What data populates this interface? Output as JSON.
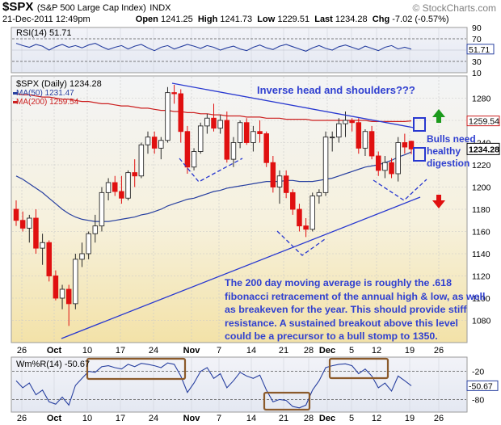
{
  "header": {
    "symbol": "$SPX",
    "name": "(S&P 500 Large Cap Index)",
    "exchange": "INDX",
    "source": "© StockCharts.com",
    "datetime": "21-Dec-2011 12:49pm",
    "open_label": "Open",
    "open": "1241.25",
    "high_label": "High",
    "high": "1241.73",
    "low_label": "Low",
    "low": "1229.51",
    "last_label": "Last",
    "last": "1234.28",
    "chg_label": "Chg",
    "chg": "-7.02 (-0.57%)"
  },
  "colors": {
    "up": "#2a2a2a",
    "down": "#e01010",
    "ma50": "#2840a0",
    "ma200": "#cc2020",
    "trendline": "#2838d0",
    "annotation": "#3040d0",
    "panel_bg": "#fbf7e6",
    "grid": "#c8c8c8"
  },
  "chart_data": [
    {
      "type": "line",
      "panel": "RSI",
      "label": "RSI(14) 51.71",
      "last_label": "51.71",
      "ylim": [
        10,
        90
      ],
      "y_ticks": [
        "10",
        "30",
        "50",
        "70",
        "90"
      ],
      "dashed_levels": [
        30,
        70
      ],
      "values": [
        62,
        58,
        55,
        60,
        57,
        50,
        56,
        60,
        55,
        58,
        54,
        59,
        62,
        56,
        51,
        55,
        58,
        52,
        57,
        60,
        54,
        49,
        55,
        58,
        52,
        56,
        60,
        57,
        53,
        58,
        55,
        50,
        54,
        57,
        52,
        49,
        55,
        59,
        54,
        51,
        57,
        60,
        56,
        52,
        48,
        54,
        58,
        53,
        50,
        56,
        59,
        55,
        51,
        57,
        53,
        49,
        55,
        58,
        52,
        55,
        51.71
      ]
    },
    {
      "type": "candlestick",
      "panel": "price",
      "label": "$SPX (Daily) 1234.28",
      "legend": [
        "MA(50) 1231.47",
        "MA(200) 1259.54"
      ],
      "last_label": "1234.28",
      "ma200_label": "1259.54",
      "ylim": [
        1060,
        1300
      ],
      "y_ticks": [
        "1080",
        "1100",
        "1120",
        "1140",
        "1160",
        "1180",
        "1200",
        "1220",
        "1240",
        "1260",
        "1280"
      ],
      "x_ticks": [
        "26",
        "Oct",
        "10",
        "17",
        "24",
        "Nov",
        "7",
        "14",
        "21",
        "28",
        "Dec",
        "5",
        "12",
        "19",
        "26"
      ],
      "ohlc": [
        [
          1180,
          1188,
          1165,
          1170
        ],
        [
          1170,
          1178,
          1160,
          1163
        ],
        [
          1163,
          1175,
          1150,
          1172
        ],
        [
          1172,
          1180,
          1140,
          1145
        ],
        [
          1145,
          1158,
          1130,
          1150
        ],
        [
          1150,
          1152,
          1115,
          1120
        ],
        [
          1120,
          1125,
          1098,
          1100
        ],
        [
          1100,
          1112,
          1090,
          1108
        ],
        [
          1108,
          1112,
          1075,
          1095
        ],
        [
          1095,
          1140,
          1090,
          1135
        ],
        [
          1135,
          1150,
          1128,
          1140
        ],
        [
          1140,
          1160,
          1135,
          1158
        ],
        [
          1158,
          1175,
          1150,
          1165
        ],
        [
          1165,
          1200,
          1160,
          1195
        ],
        [
          1195,
          1208,
          1188,
          1204
        ],
        [
          1204,
          1210,
          1192,
          1196
        ],
        [
          1196,
          1210,
          1185,
          1190
        ],
        [
          1190,
          1215,
          1188,
          1213
        ],
        [
          1213,
          1225,
          1200,
          1210
        ],
        [
          1210,
          1240,
          1208,
          1238
        ],
        [
          1238,
          1250,
          1230,
          1245
        ],
        [
          1245,
          1250,
          1230,
          1235
        ],
        [
          1235,
          1245,
          1225,
          1242
        ],
        [
          1242,
          1290,
          1240,
          1285
        ],
        [
          1285,
          1292,
          1275,
          1284
        ],
        [
          1284,
          1288,
          1240,
          1250
        ],
        [
          1250,
          1255,
          1212,
          1218
        ],
        [
          1218,
          1235,
          1215,
          1232
        ],
        [
          1232,
          1258,
          1230,
          1255
        ],
        [
          1255,
          1266,
          1248,
          1262
        ],
        [
          1262,
          1275,
          1250,
          1253
        ],
        [
          1253,
          1265,
          1248,
          1260
        ],
        [
          1260,
          1268,
          1222,
          1225
        ],
        [
          1225,
          1245,
          1218,
          1240
        ],
        [
          1240,
          1260,
          1235,
          1258
        ],
        [
          1258,
          1262,
          1238,
          1240
        ],
        [
          1240,
          1255,
          1232,
          1250
        ],
        [
          1250,
          1260,
          1240,
          1248
        ],
        [
          1248,
          1250,
          1218,
          1222
        ],
        [
          1222,
          1228,
          1195,
          1200
        ],
        [
          1200,
          1215,
          1185,
          1210
        ],
        [
          1210,
          1215,
          1190,
          1195
        ],
        [
          1195,
          1198,
          1175,
          1180
        ],
        [
          1180,
          1185,
          1160,
          1165
        ],
        [
          1165,
          1172,
          1155,
          1162
        ],
        [
          1162,
          1195,
          1160,
          1192
        ],
        [
          1192,
          1198,
          1185,
          1195
        ],
        [
          1195,
          1250,
          1192,
          1245
        ],
        [
          1245,
          1250,
          1232,
          1245
        ],
        [
          1245,
          1262,
          1240,
          1257
        ],
        [
          1257,
          1268,
          1245,
          1260
        ],
        [
          1260,
          1262,
          1250,
          1258
        ],
        [
          1258,
          1262,
          1230,
          1235
        ],
        [
          1235,
          1252,
          1228,
          1250
        ],
        [
          1250,
          1255,
          1225,
          1228
        ],
        [
          1228,
          1232,
          1210,
          1215
        ],
        [
          1215,
          1228,
          1208,
          1222
        ],
        [
          1222,
          1226,
          1208,
          1212
        ],
        [
          1212,
          1245,
          1205,
          1240
        ],
        [
          1240,
          1248,
          1230,
          1236
        ],
        [
          1241.25,
          1241.73,
          1229.51,
          1234.28
        ]
      ],
      "ma50": [
        1210,
        1207,
        1203,
        1199,
        1195,
        1190,
        1185,
        1180,
        1176,
        1173,
        1171,
        1170,
        1169,
        1169,
        1169,
        1170,
        1171,
        1172,
        1173,
        1175,
        1176,
        1178,
        1180,
        1183,
        1185,
        1187,
        1189,
        1190,
        1192,
        1194,
        1196,
        1197,
        1199,
        1200,
        1201,
        1202,
        1203,
        1204,
        1205,
        1205,
        1205,
        1206,
        1206,
        1205,
        1205,
        1205,
        1206,
        1207,
        1208,
        1210,
        1212,
        1214,
        1216,
        1218,
        1219,
        1220,
        1222,
        1224,
        1227,
        1229,
        1231.47
      ],
      "ma200": [
        1284,
        1283,
        1283,
        1282,
        1281,
        1281,
        1280,
        1279,
        1279,
        1278,
        1277,
        1277,
        1276,
        1275,
        1275,
        1274,
        1273,
        1273,
        1272,
        1271,
        1271,
        1270,
        1269,
        1269,
        1268,
        1268,
        1267,
        1267,
        1266,
        1266,
        1265,
        1265,
        1264,
        1264,
        1264,
        1263,
        1263,
        1263,
        1262,
        1262,
        1262,
        1261,
        1261,
        1261,
        1261,
        1260,
        1260,
        1260,
        1260,
        1260,
        1260,
        1260,
        1260,
        1260,
        1259,
        1259,
        1259,
        1259,
        1259,
        1259,
        1259.54
      ]
    },
    {
      "type": "line",
      "panel": "Williams %R",
      "label": "Wm%R(14) -50.67",
      "last_label": "-50.67",
      "ylim": [
        -100,
        0
      ],
      "y_ticks": [
        "-20",
        "-80"
      ],
      "dashed_levels": [
        -20,
        -80
      ],
      "x_ticks": [
        "26",
        "Oct",
        "10",
        "17",
        "24",
        "Nov",
        "7",
        "14",
        "21",
        "28",
        "Dec",
        "5",
        "12",
        "19",
        "26"
      ],
      "values": [
        -40,
        -55,
        -45,
        -70,
        -60,
        -85,
        -90,
        -75,
        -92,
        -50,
        -35,
        -20,
        -22,
        -10,
        -8,
        -12,
        -15,
        -5,
        -10,
        -3,
        -5,
        -8,
        -12,
        -2,
        -5,
        -30,
        -65,
        -45,
        -20,
        -12,
        -35,
        -25,
        -55,
        -40,
        -22,
        -30,
        -35,
        -28,
        -60,
        -85,
        -80,
        -82,
        -95,
        -98,
        -92,
        -60,
        -40,
        -12,
        -8,
        -5,
        -4,
        -8,
        -25,
        -15,
        -30,
        -55,
        -45,
        -62,
        -30,
        -40,
        -50.67
      ]
    }
  ],
  "annotations": {
    "pattern": "Inverse head and shoulders???",
    "bulls_line1": "Bulls need",
    "bulls_line2": "healthy",
    "bulls_line3": "digestion",
    "note_line1": "The 200 day moving average is roughly the .618",
    "note_line2": "fibonacci retracement of the annual high & low, as well",
    "note_line3": "as breakeven for the year.  This should provide stiff",
    "note_line4": "resistance. A sustained breakout above this level",
    "note_line5": "could be a precursor to a bull stomp to 1350."
  }
}
